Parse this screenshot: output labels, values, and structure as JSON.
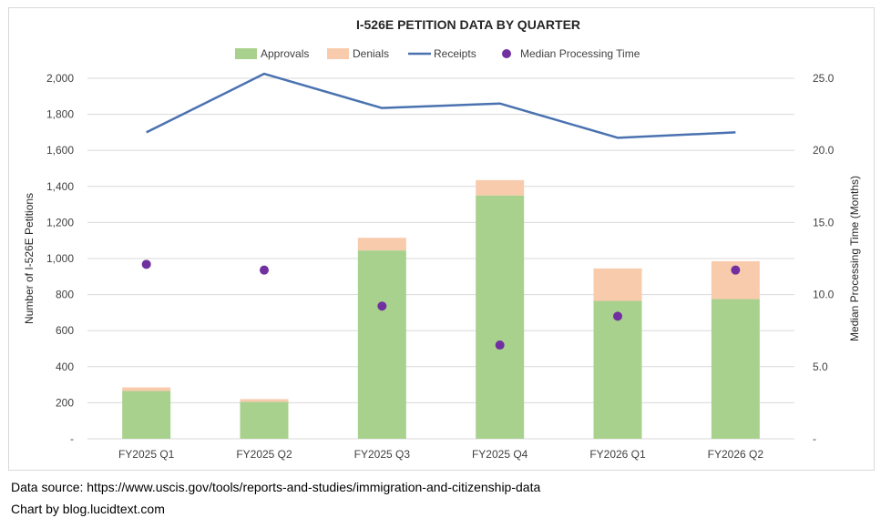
{
  "chart_data": {
    "type": "bar",
    "title": "I-526E PETITION DATA BY QUARTER",
    "categories": [
      "FY2025 Q1",
      "FY2025 Q2",
      "FY2025 Q3",
      "FY2025 Q4",
      "FY2026 Q1",
      "FY2026 Q2"
    ],
    "series": [
      {
        "name": "Approvals",
        "type": "stacked-bar",
        "axis": "left",
        "color": "#a9d18e",
        "values": [
          265,
          205,
          1045,
          1350,
          765,
          775
        ]
      },
      {
        "name": "Denials",
        "type": "stacked-bar",
        "axis": "left",
        "color": "#f8cbad",
        "values": [
          20,
          15,
          70,
          85,
          180,
          210
        ]
      },
      {
        "name": "Receipts",
        "type": "line",
        "axis": "left",
        "color": "#4a72b0",
        "values": [
          1700,
          2025,
          1835,
          1860,
          1670,
          1700
        ]
      },
      {
        "name": "Median Processing Time",
        "type": "scatter",
        "axis": "right",
        "color": "#7030a0",
        "values": [
          12.1,
          11.7,
          9.2,
          6.5,
          8.5,
          11.7
        ]
      }
    ],
    "ylabel": "Number of I-526E Petitions",
    "y2label": "Median Processing Time (Months)",
    "ylim": [
      0,
      2000
    ],
    "y2lim": [
      0,
      25
    ],
    "yticks": [
      "-",
      "200",
      "400",
      "600",
      "800",
      "1,000",
      "1,200",
      "1,400",
      "1,600",
      "1,800",
      "2,000"
    ],
    "y2ticks": [
      "-",
      "5.0",
      "10.0",
      "15.0",
      "20.0",
      "25.0"
    ],
    "grid": true,
    "legend_position": "top"
  },
  "footer": {
    "source": "Data source: https://www.uscis.gov/tools/reports-and-studies/immigration-and-citizenship-data",
    "credit": "Chart by blog.lucidtext.com"
  }
}
